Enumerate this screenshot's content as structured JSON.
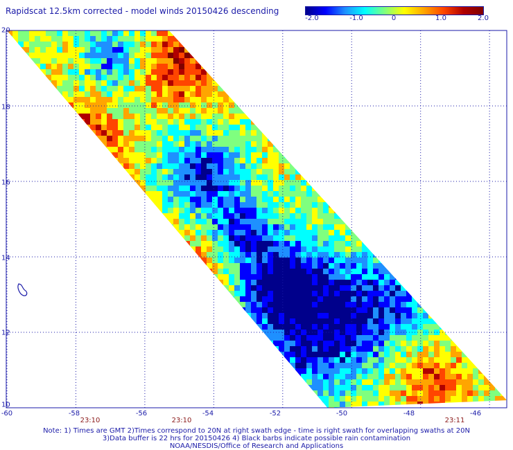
{
  "title": "Rapidscat 12.5km corrected - model winds 20150426 descending",
  "colorbar": {
    "labels": [
      "-2.0",
      "-1.0",
      "0",
      "1.0",
      "2.0"
    ],
    "min": -2.0,
    "max": 2.0,
    "colors": [
      "#00008b",
      "#0000ff",
      "#1e90ff",
      "#00ffff",
      "#7fff7f",
      "#ffff00",
      "#ffa500",
      "#ff4500",
      "#b00000",
      "#800000"
    ]
  },
  "map": {
    "lon_ticks": [
      "-60",
      "-58",
      "-56",
      "-54",
      "-52",
      "-50",
      "-48",
      "-46"
    ],
    "lat_ticks": [
      "20",
      "18",
      "16",
      "14",
      "12",
      "10"
    ],
    "lon_range": [
      -60,
      -45.5
    ],
    "lat_range": [
      10,
      20
    ],
    "time_labels": [
      {
        "text": "23:10",
        "lon": -57.5
      },
      {
        "text": "23:10",
        "lon": -54.8
      },
      {
        "text": "23:11",
        "lon": -46.6
      }
    ],
    "swath_corners": [
      [
        -60,
        20
      ],
      [
        -55.3,
        20
      ],
      [
        -45.5,
        10.2
      ],
      [
        -50.7,
        10
      ]
    ]
  },
  "notes": [
    "Note: 1) Times are GMT 2)Times correspond to 20N at right swath edge - time is right swath for overlapping swaths at 20N",
    "3)Data buffer is 22 hrs for 20150426 4) Black barbs indicate possible rain contamination",
    "NOAA/NESDIS/Office of Research and Applications"
  ]
}
